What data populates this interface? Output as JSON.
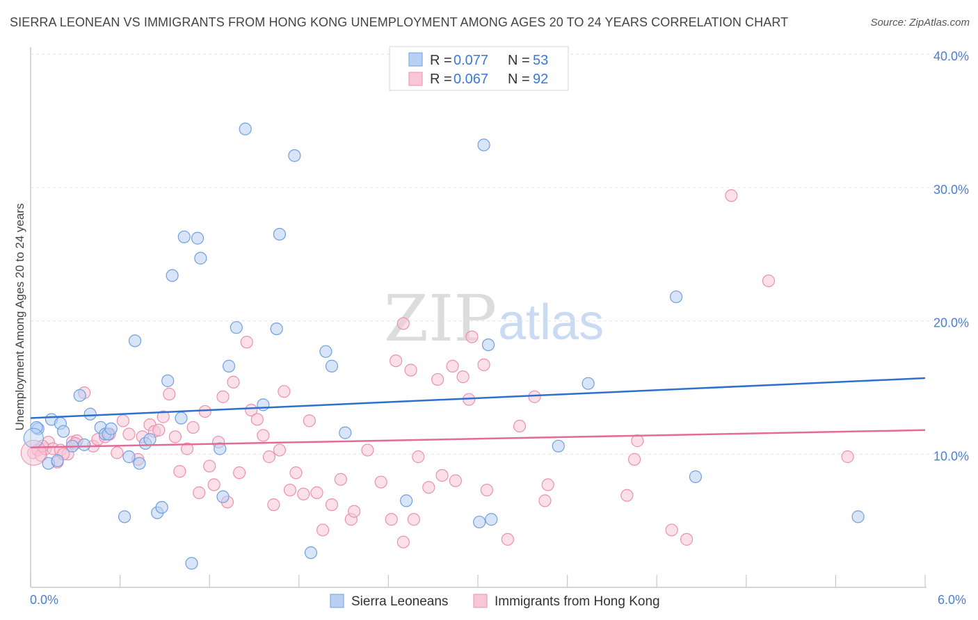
{
  "header": {
    "title": "SIERRA LEONEAN VS IMMIGRANTS FROM HONG KONG UNEMPLOYMENT AMONG AGES 20 TO 24 YEARS CORRELATION CHART",
    "source": "Source: ZipAtlas.com"
  },
  "watermark": {
    "zip": "ZIP",
    "atlas": "atlas"
  },
  "legend": {
    "r_label": "R =",
    "n_label": "N =",
    "rows": [
      {
        "r": "0.077",
        "n": "53"
      },
      {
        "r": "0.067",
        "n": "92"
      }
    ]
  },
  "bottom_legend": {
    "items": [
      "Sierra Leoneans",
      "Immigrants from Hong Kong"
    ]
  },
  "colors": {
    "blue_fill": "#b8d0f2",
    "blue_stroke": "#6f9fe0",
    "blue_line": "#2f6fce",
    "pink_fill": "#f8c6d6",
    "pink_stroke": "#ec8fb0",
    "pink_line": "#e46b98",
    "tick_text": "#4a7fd4"
  },
  "chart_data": {
    "type": "scatter",
    "title": "SIERRA LEONEAN VS IMMIGRANTS FROM HONG KONG UNEMPLOYMENT AMONG AGES 20 TO 24 YEARS CORRELATION CHART",
    "xlabel": "",
    "ylabel": "Unemployment Among Ages 20 to 24 years",
    "xlim": [
      0,
      6
    ],
    "ylim": [
      0,
      41
    ],
    "x_tick_labels": [
      "0.0%",
      "6.0%"
    ],
    "y_ticks": [
      10,
      20,
      30,
      40
    ],
    "y_tick_labels": [
      "10.0%",
      "20.0%",
      "30.0%",
      "40.0%"
    ],
    "grid": true,
    "series": [
      {
        "name": "Sierra Leoneans",
        "trend": [
          [
            0,
            12.7
          ],
          [
            6,
            15.7
          ]
        ],
        "points": [
          [
            0.05,
            11.9
          ],
          [
            0.12,
            9.3
          ],
          [
            0.14,
            12.6
          ],
          [
            0.18,
            9.5
          ],
          [
            0.2,
            12.3
          ],
          [
            0.22,
            11.7
          ],
          [
            0.28,
            10.6
          ],
          [
            0.33,
            14.4
          ],
          [
            0.36,
            10.7
          ],
          [
            0.4,
            13.0
          ],
          [
            0.47,
            12.0
          ],
          [
            0.5,
            11.5
          ],
          [
            0.52,
            11.5
          ],
          [
            0.54,
            11.9
          ],
          [
            0.63,
            5.3
          ],
          [
            0.66,
            9.8
          ],
          [
            0.7,
            18.5
          ],
          [
            0.73,
            9.3
          ],
          [
            0.77,
            10.8
          ],
          [
            0.8,
            11.1
          ],
          [
            0.85,
            5.6
          ],
          [
            0.88,
            6.0
          ],
          [
            0.92,
            15.5
          ],
          [
            0.95,
            23.4
          ],
          [
            1.01,
            12.7
          ],
          [
            1.03,
            26.3
          ],
          [
            1.08,
            1.8
          ],
          [
            1.12,
            26.2
          ],
          [
            1.14,
            24.7
          ],
          [
            1.27,
            10.4
          ],
          [
            1.29,
            6.8
          ],
          [
            1.33,
            16.6
          ],
          [
            1.38,
            19.5
          ],
          [
            1.44,
            34.4
          ],
          [
            1.56,
            13.7
          ],
          [
            1.65,
            19.4
          ],
          [
            1.67,
            26.5
          ],
          [
            1.77,
            32.4
          ],
          [
            1.88,
            2.6
          ],
          [
            1.98,
            17.7
          ],
          [
            2.02,
            16.6
          ],
          [
            2.11,
            11.6
          ],
          [
            2.52,
            6.5
          ],
          [
            3.01,
            4.9
          ],
          [
            3.04,
            33.2
          ],
          [
            3.07,
            18.2
          ],
          [
            3.09,
            5.1
          ],
          [
            3.54,
            10.6
          ],
          [
            3.74,
            15.3
          ],
          [
            4.33,
            21.8
          ],
          [
            4.46,
            8.3
          ],
          [
            5.55,
            5.3
          ],
          [
            0.04,
            12.0
          ]
        ]
      },
      {
        "name": "Immigrants from Hong Kong",
        "trend": [
          [
            0,
            10.5
          ],
          [
            6,
            11.8
          ]
        ],
        "points": [
          [
            0.02,
            10.1
          ],
          [
            0.05,
            10.3
          ],
          [
            0.07,
            9.9
          ],
          [
            0.1,
            10.4
          ],
          [
            0.12,
            10.9
          ],
          [
            0.15,
            10.4
          ],
          [
            0.18,
            9.4
          ],
          [
            0.2,
            10.3
          ],
          [
            0.25,
            10.0
          ],
          [
            0.28,
            10.9
          ],
          [
            0.31,
            11.0
          ],
          [
            0.36,
            14.6
          ],
          [
            0.42,
            10.6
          ],
          [
            0.45,
            11.1
          ],
          [
            0.5,
            11.3
          ],
          [
            0.53,
            11.5
          ],
          [
            0.58,
            10.1
          ],
          [
            0.62,
            12.5
          ],
          [
            0.66,
            11.5
          ],
          [
            0.72,
            9.6
          ],
          [
            0.75,
            11.3
          ],
          [
            0.8,
            12.2
          ],
          [
            0.83,
            11.7
          ],
          [
            0.86,
            11.8
          ],
          [
            0.89,
            12.8
          ],
          [
            0.93,
            14.5
          ],
          [
            0.97,
            11.3
          ],
          [
            1.0,
            8.7
          ],
          [
            1.05,
            10.4
          ],
          [
            1.09,
            12.0
          ],
          [
            1.13,
            7.1
          ],
          [
            1.17,
            13.2
          ],
          [
            1.2,
            9.1
          ],
          [
            1.23,
            7.7
          ],
          [
            1.26,
            10.9
          ],
          [
            1.29,
            14.3
          ],
          [
            1.32,
            6.4
          ],
          [
            1.36,
            15.4
          ],
          [
            1.4,
            8.6
          ],
          [
            1.45,
            18.4
          ],
          [
            1.48,
            13.3
          ],
          [
            1.52,
            12.6
          ],
          [
            1.56,
            11.4
          ],
          [
            1.6,
            9.8
          ],
          [
            1.63,
            6.2
          ],
          [
            1.67,
            10.3
          ],
          [
            1.7,
            14.7
          ],
          [
            1.74,
            7.3
          ],
          [
            1.78,
            8.6
          ],
          [
            1.83,
            7.0
          ],
          [
            1.87,
            12.5
          ],
          [
            1.92,
            7.1
          ],
          [
            1.96,
            4.3
          ],
          [
            2.02,
            6.2
          ],
          [
            2.08,
            8.1
          ],
          [
            2.15,
            5.1
          ],
          [
            2.17,
            5.7
          ],
          [
            2.26,
            10.3
          ],
          [
            2.35,
            7.9
          ],
          [
            2.42,
            5.1
          ],
          [
            2.45,
            17.0
          ],
          [
            2.5,
            3.4
          ],
          [
            2.5,
            19.8
          ],
          [
            2.55,
            16.3
          ],
          [
            2.57,
            5.1
          ],
          [
            2.6,
            9.8
          ],
          [
            2.67,
            7.5
          ],
          [
            2.73,
            15.6
          ],
          [
            2.76,
            8.4
          ],
          [
            2.83,
            16.6
          ],
          [
            2.85,
            8.0
          ],
          [
            2.9,
            15.8
          ],
          [
            2.94,
            14.1
          ],
          [
            2.96,
            18.8
          ],
          [
            3.04,
            16.7
          ],
          [
            3.06,
            7.3
          ],
          [
            3.2,
            3.6
          ],
          [
            3.28,
            12.1
          ],
          [
            3.38,
            14.3
          ],
          [
            3.45,
            6.5
          ],
          [
            3.47,
            7.7
          ],
          [
            4.0,
            6.9
          ],
          [
            4.05,
            9.6
          ],
          [
            4.07,
            11.0
          ],
          [
            4.3,
            4.3
          ],
          [
            4.4,
            3.6
          ],
          [
            4.7,
            29.4
          ],
          [
            4.95,
            23.0
          ],
          [
            5.48,
            9.8
          ],
          [
            0.08,
            10.6
          ],
          [
            0.22,
            10.0
          ],
          [
            0.3,
            10.8
          ]
        ]
      }
    ]
  }
}
